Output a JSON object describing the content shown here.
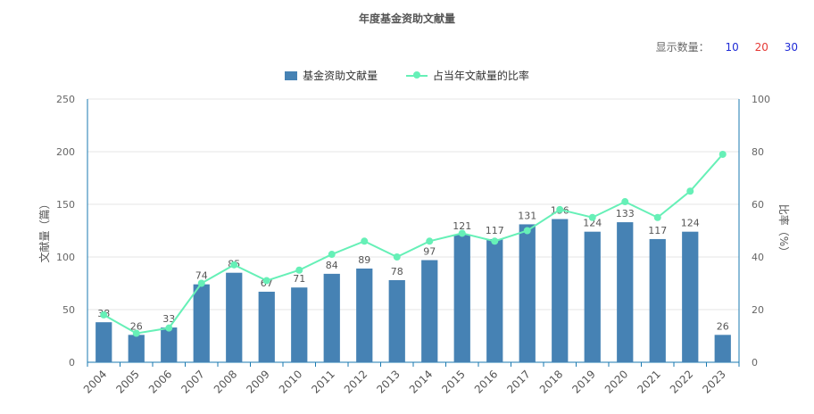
{
  "page": {
    "title": "年度基金资助文献量",
    "count_label": "显示数量：",
    "count_options": [
      "10",
      "20",
      "30"
    ]
  },
  "legend": {
    "bar_label": "基金资助文献量",
    "line_label": "占当年文献量的比率"
  },
  "chart_data": {
    "type": "bar",
    "categories": [
      "2004",
      "2005",
      "2006",
      "2007",
      "2008",
      "2009",
      "2010",
      "2011",
      "2012",
      "2013",
      "2014",
      "2015",
      "2016",
      "2017",
      "2018",
      "2019",
      "2020",
      "2021",
      "2022",
      "2023"
    ],
    "series": [
      {
        "name": "基金资助文献量",
        "type": "bar",
        "axis": "left",
        "color": "#4682b4",
        "values": [
          38,
          26,
          33,
          74,
          85,
          67,
          71,
          84,
          89,
          78,
          97,
          121,
          117,
          131,
          136,
          124,
          133,
          117,
          124,
          26
        ]
      },
      {
        "name": "占当年文献量的比率",
        "type": "line",
        "axis": "right",
        "color": "#66f0b7",
        "values": [
          18,
          11,
          13,
          30,
          37,
          31,
          35,
          41,
          46,
          40,
          46,
          49,
          46,
          50,
          58,
          55,
          61,
          55,
          65,
          79
        ]
      }
    ],
    "ylabel_left": "文献量（篇）",
    "ylabel_right": "比率（%）",
    "ylim_left": [
      0,
      250
    ],
    "ylim_right": [
      0,
      100
    ],
    "yticks_left": [
      0,
      50,
      100,
      150,
      200,
      250
    ],
    "yticks_right": [
      0,
      20,
      40,
      60,
      80,
      100
    ],
    "grid": true
  }
}
